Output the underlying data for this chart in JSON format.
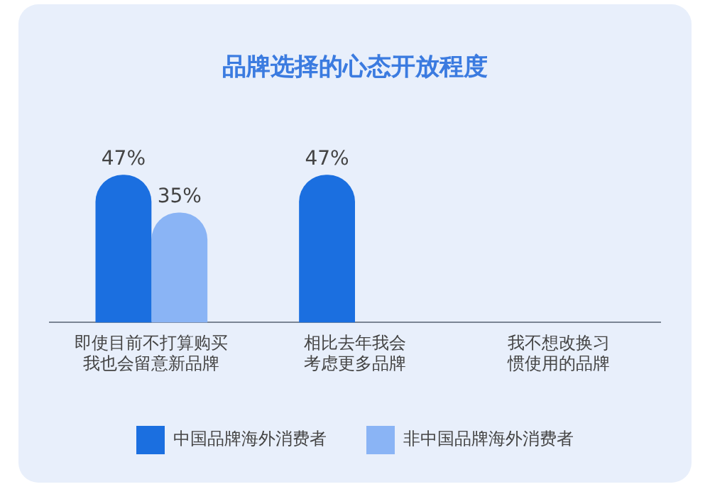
{
  "chart_data": {
    "type": "bar",
    "title": "品牌选择的心态开放程度",
    "categories": [
      "即使目前不打算购买我也会留意新品牌",
      "相比去年我会考虑更多品牌",
      "我不想改换习惯使用的品牌"
    ],
    "series": [
      {
        "name": "中国品牌海外消费者",
        "color": "#1b6fe0",
        "values": [
          47,
          47,
          null
        ],
        "value_labels": [
          "47%",
          "47%",
          null
        ]
      },
      {
        "name": "非中国品牌海外消费者",
        "color": "#8ab4f5",
        "values": [
          35,
          null,
          null
        ],
        "value_labels": [
          "35%",
          null,
          null
        ]
      }
    ],
    "legend": "bottom",
    "grid": false
  }
}
